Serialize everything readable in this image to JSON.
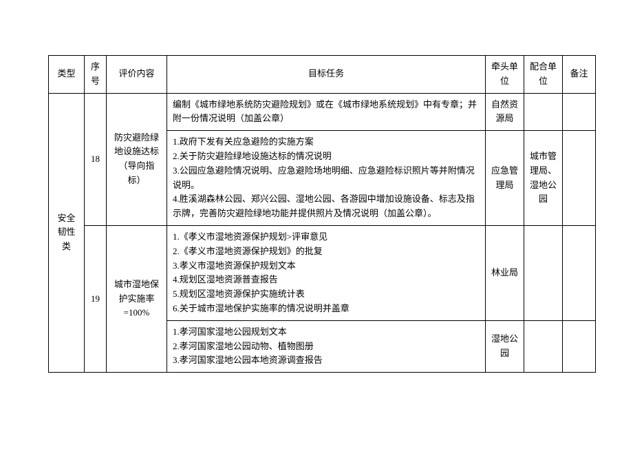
{
  "headers": {
    "type": "类型",
    "seq": "序号",
    "eval": "评价内容",
    "task": "目标任务",
    "lead": "牵头单位",
    "coop": "配合单位",
    "note": "备注"
  },
  "type_cell": "安全韧性类",
  "rows": [
    {
      "seq": "18",
      "eval": "防灾避险绿地设施达标（导向指标）",
      "tasks": [
        {
          "content": "编制《城市绿地系统防灾避险规划》或在《城市绿地系统规划》中有专章；并附一份情况说明（加盖公章）",
          "lead": "自然资源局",
          "coop": "",
          "note": ""
        },
        {
          "content": "1.政府下发有关应急避险的实施方案\n2.关于防灾避险绿地设施达标的情况说明\n3.公园应急避险情况说明、应急避险场地明细、应急避险标识照片等并附情况说明。\n4.胜溪湖森林公园、郑兴公园、湿地公园、各游园中增加设施设备、标志及指示牌，完善防灾避险绿地功能并提供照片及情况说明（加盖公章）。",
          "lead": "应急管理局",
          "coop": "城市管理局、湿地公园",
          "note": ""
        }
      ]
    },
    {
      "seq": "19",
      "eval": "城市湿地保护实施率=100%",
      "tasks": [
        {
          "content": "1.《孝义市湿地资源保护规划>评审意见\n2.《孝义市湿地资源保护规划》的批复\n3.孝义市湿地资源保护规划文本\n4.规划区湿地资源普查报告\n5.规划区湿地资源保护实施统计表\n6.关于城市湿地保护实施率的情况说明并盖章",
          "lead": "林业局",
          "coop": "",
          "note": ""
        },
        {
          "content": "1.孝河国家湿地公园规划文本\n2.孝河国家湿地公园动物、植物图册\n3.孝河国家湿地公园本地资源调查报告",
          "lead": "湿地公园",
          "coop": "",
          "note": ""
        }
      ]
    }
  ]
}
